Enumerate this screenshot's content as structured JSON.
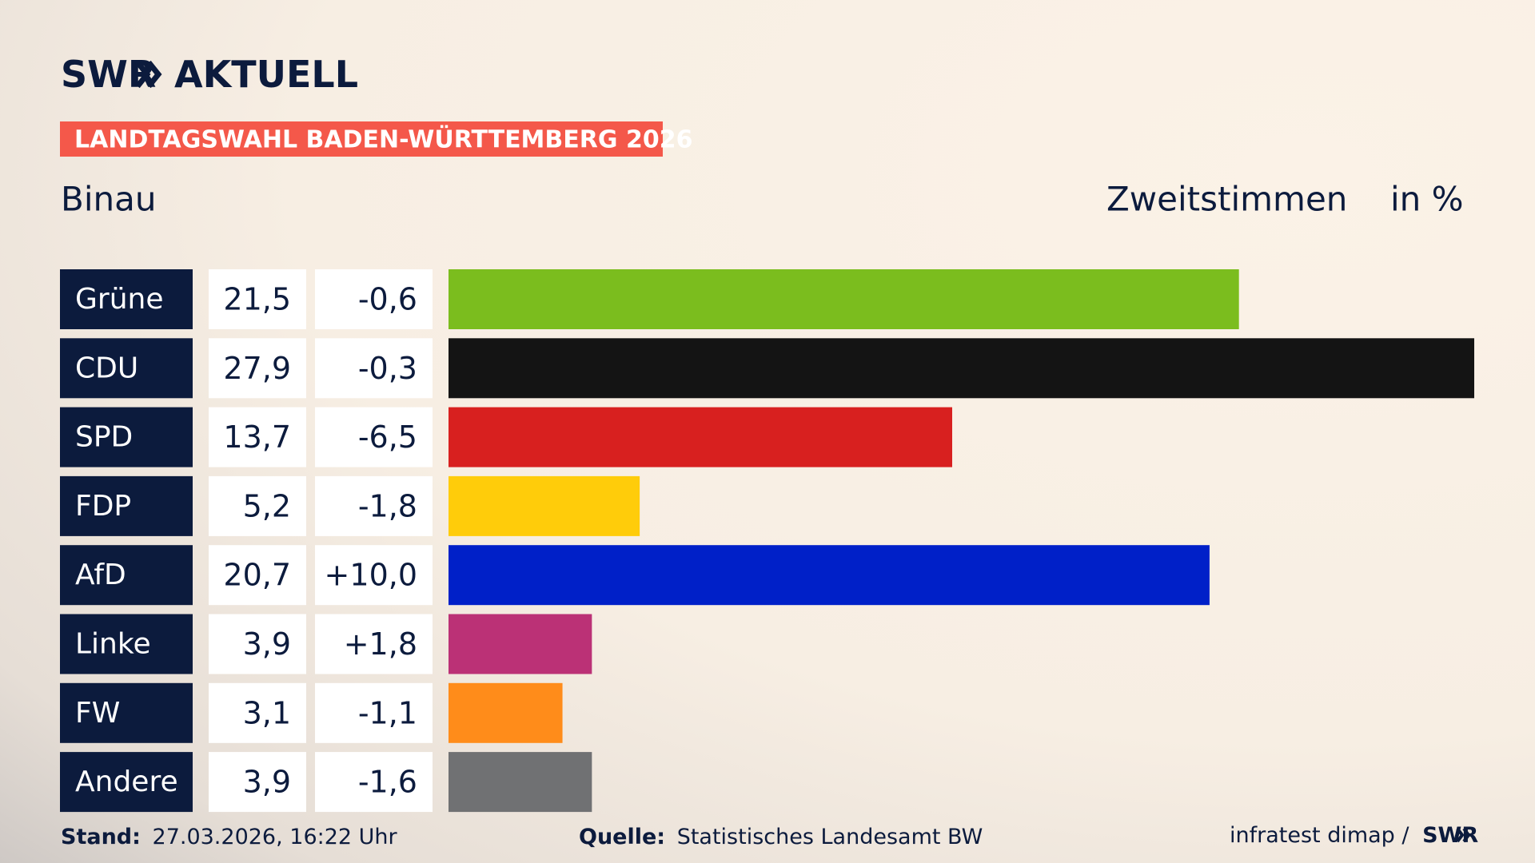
{
  "logo": {
    "brand": "SWR",
    "product": "AKTUELL"
  },
  "banner": "LANDTAGSWAHL BADEN-WÜRTTEMBERG 2026",
  "chart_data": {
    "type": "bar",
    "title": "Binau",
    "subtitle": "Zweitstimmen",
    "unit": "in %",
    "categories": [
      "Grüne",
      "CDU",
      "SPD",
      "FDP",
      "AfD",
      "Linke",
      "FW",
      "Andere"
    ],
    "values": [
      21.5,
      27.9,
      13.7,
      5.2,
      20.7,
      3.9,
      3.1,
      3.9
    ],
    "value_labels": [
      "21,5",
      "27,9",
      "13,7",
      "5,2",
      "20,7",
      "3,9",
      "3,1",
      "3,9"
    ],
    "changes": [
      -0.6,
      -0.3,
      -6.5,
      -1.8,
      10.0,
      1.8,
      -1.1,
      -1.6
    ],
    "change_labels": [
      "-0,6",
      "-0,3",
      "-6,5",
      "-1,8",
      "+10,0",
      "+1,8",
      "-1,1",
      "-1,6"
    ],
    "colors": [
      "#7bbd1e",
      "#141414",
      "#d8201f",
      "#ffcc0a",
      "#0020c8",
      "#bb3176",
      "#ff8c1a",
      "#707173"
    ]
  },
  "footer": {
    "date_label": "Stand:",
    "date": "27.03.2026, 16:22 Uhr",
    "source_label": "Quelle:",
    "source": "Statistisches Landesamt BW",
    "credit": "infratest dimap /",
    "credit_brand": "SWR"
  }
}
